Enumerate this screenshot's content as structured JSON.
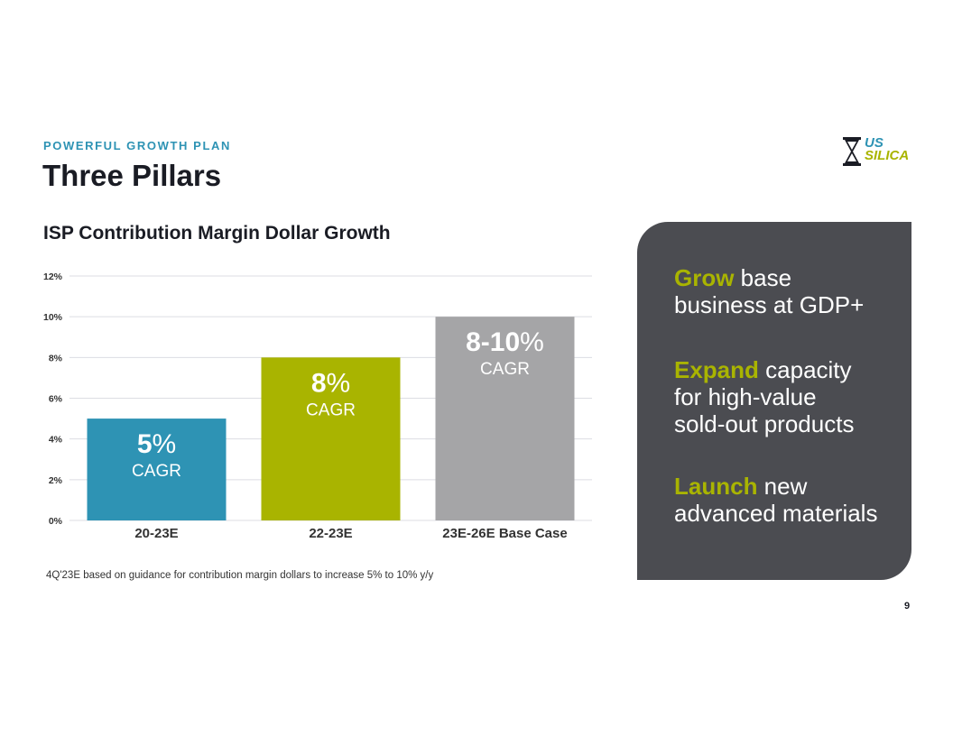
{
  "header": {
    "kicker": "POWERFUL GROWTH PLAN",
    "title": "Three Pillars"
  },
  "logo": {
    "line1": "US",
    "line2": "SILICA",
    "mark": "®"
  },
  "colors": {
    "teal": "#2e93b4",
    "lime": "#a9b400",
    "gray_bar": "#a5a5a7",
    "panel": "#4b4c51"
  },
  "chart_data": {
    "type": "bar",
    "title": "ISP Contribution Margin Dollar Growth",
    "categories": [
      "20-23E",
      "22-23E",
      "23E-26E Base Case"
    ],
    "values": [
      5,
      8,
      10
    ],
    "bar_labels": [
      {
        "value": "5%",
        "sub": "CAGR"
      },
      {
        "value": "8%",
        "sub": "CAGR"
      },
      {
        "value": "8-10%",
        "sub": "CAGR"
      }
    ],
    "bar_colors": [
      "#2e93b4",
      "#a9b400",
      "#a5a5a7"
    ],
    "ylim": [
      0,
      12
    ],
    "yticks": [
      0,
      2,
      4,
      6,
      8,
      10,
      12
    ],
    "ytick_labels": [
      "0%",
      "2%",
      "4%",
      "6%",
      "8%",
      "10%",
      "12%"
    ],
    "xlabel": "",
    "ylabel": "",
    "grid": true,
    "legend": "none"
  },
  "footnote": "4Q'23E based on guidance for contribution margin dollars to increase 5% to 10% y/y",
  "pillars": [
    {
      "emphasis": "Grow",
      "rest_first": " base",
      "lines": [
        "business at GDP+"
      ]
    },
    {
      "emphasis": "Expand",
      "rest_first": " capacity",
      "lines": [
        "for high-value",
        "sold-out products"
      ]
    },
    {
      "emphasis": "Launch",
      "rest_first": " new",
      "lines": [
        "advanced materials"
      ]
    }
  ],
  "page_number": "9"
}
